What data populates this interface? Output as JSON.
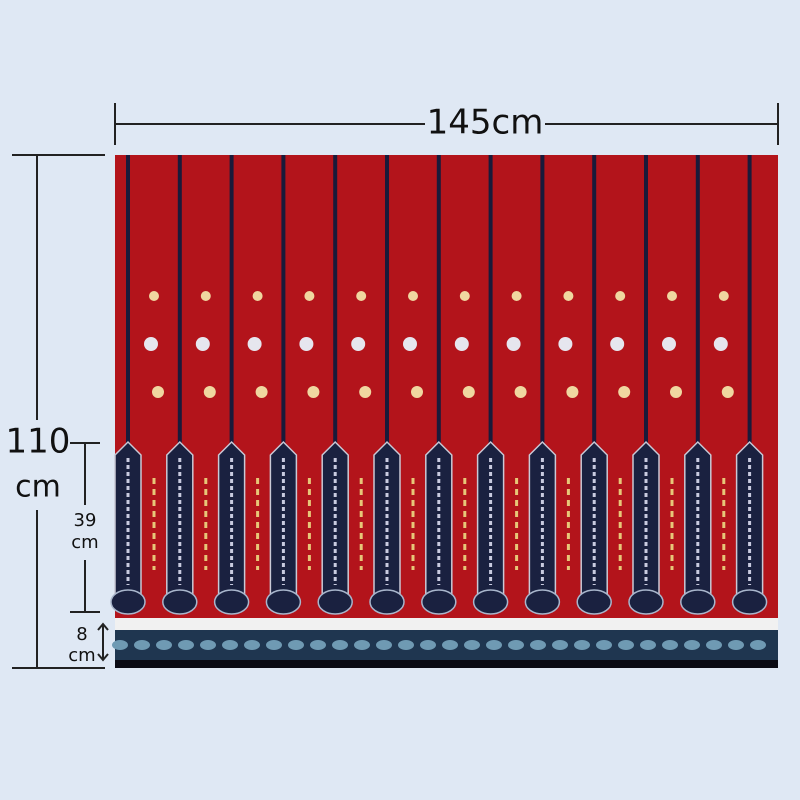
{
  "dimensions": {
    "width": "145cm",
    "height": {
      "number": "110",
      "unit": "cm"
    },
    "panel": {
      "number": "39",
      "unit": "cm"
    },
    "border": {
      "number": "8",
      "unit": "cm"
    }
  }
}
